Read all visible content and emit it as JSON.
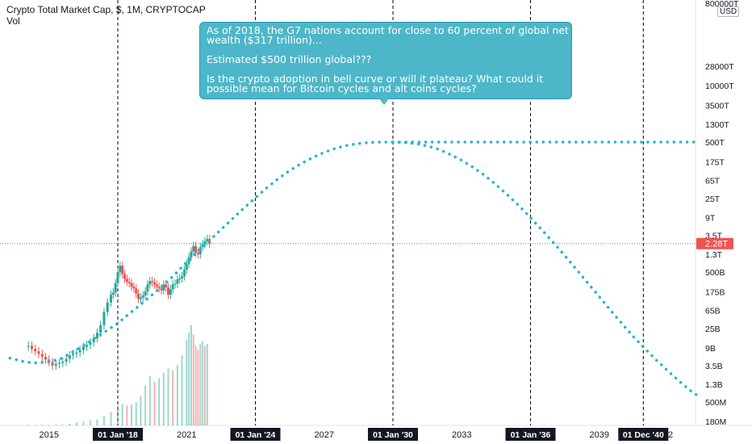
{
  "legend": {
    "title": "Crypto Total Market Cap, $, 1M, CRYPTOCAP",
    "volume_label": "Vol"
  },
  "currency_badge": "USD",
  "callout": {
    "lines": [
      "As of 2018, the G7 nations account for close to 60 percent of global net",
      "wealth ($317 trillion)...",
      "",
      "Estimated $500 trillion global???",
      "",
      "Is the crypto adoption in bell curve or will it plateau? What could it",
      "possible mean for Bitcoin cycles and alt coins cycles?"
    ]
  },
  "colors": {
    "up": "#26a69a",
    "down": "#ef5350",
    "projection": "#26b5cf",
    "price_line": "#ef5350",
    "callout_bg": "#4db6c9"
  },
  "chart_data": {
    "type": "line",
    "title": "Crypto Total Market Cap, $, 1M, CRYPTOCAP",
    "y_scale": "log",
    "y_tick_labels": [
      "800000T",
      "28000T",
      "10000T",
      "3500T",
      "1300T",
      "500T",
      "175T",
      "65T",
      "25T",
      "9T",
      "3.5T",
      "1.3T",
      "500B",
      "175B",
      "65B",
      "25B",
      "9B",
      "3.5B",
      "1.3B",
      "500M",
      "180M"
    ],
    "y_tick_values": [
      8e+17,
      2.8e+16,
      1e+16,
      3500000000000000.0,
      1300000000000000.0,
      500000000000000.0,
      175000000000000.0,
      65000000000000.0,
      25000000000000.0,
      9000000000000.0,
      3500000000000.0,
      1300000000000.0,
      500000000000.0,
      175000000000.0,
      65000000000.0,
      25000000000.0,
      9000000000.0,
      3500000000.0,
      1300000000.0,
      500000000.0,
      180000000.0
    ],
    "current_price_label": "2.28T",
    "current_price": 2280000000000.0,
    "x_tick_labels": [
      "2015",
      "2021",
      "2027",
      "2033",
      "2039",
      "42"
    ],
    "x_tick_years": [
      2015,
      2021,
      2027,
      2033,
      2039,
      2042
    ],
    "marker_labels": [
      "01 Jan '18",
      "01 Jan '24",
      "01 Jan '30",
      "01 Jan '36",
      "01 Dec '40"
    ],
    "marker_years": [
      2018.0,
      2024.0,
      2030.0,
      2036.0,
      2040.92
    ],
    "x_range": [
      2013.3,
      2043.5
    ],
    "series": [
      {
        "kind": "candles",
        "points": [
          [
            2014.1,
            10000000000.0
          ],
          [
            2014.25,
            8500000000.0
          ],
          [
            2014.4,
            7500000000.0
          ],
          [
            2014.55,
            6500000000.0
          ],
          [
            2014.7,
            5500000000.0
          ],
          [
            2014.85,
            4800000000.0
          ],
          [
            2015.0,
            4200000000.0
          ],
          [
            2015.15,
            3500000000.0
          ],
          [
            2015.3,
            3800000000.0
          ],
          [
            2015.45,
            4000000000.0
          ],
          [
            2015.6,
            4300000000.0
          ],
          [
            2015.75,
            5000000000.0
          ],
          [
            2015.9,
            6000000000.0
          ],
          [
            2016.05,
            6500000000.0
          ],
          [
            2016.2,
            7000000000.0
          ],
          [
            2016.35,
            8000000000.0
          ],
          [
            2016.5,
            9500000000.0
          ],
          [
            2016.65,
            10500000000.0
          ],
          [
            2016.8,
            12000000000.0
          ],
          [
            2016.95,
            15000000000.0
          ],
          [
            2017.1,
            20000000000.0
          ],
          [
            2017.25,
            30000000000.0
          ],
          [
            2017.4,
            60000000000.0
          ],
          [
            2017.55,
            100000000000.0
          ],
          [
            2017.7,
            150000000000.0
          ],
          [
            2017.8,
            170000000000.0
          ],
          [
            2017.9,
            280000000000.0
          ],
          [
            2018.0,
            500000000000.0
          ],
          [
            2018.1,
            700000000000.0
          ],
          [
            2018.2,
            450000000000.0
          ],
          [
            2018.3,
            350000000000.0
          ],
          [
            2018.4,
            300000000000.0
          ],
          [
            2018.5,
            280000000000.0
          ],
          [
            2018.6,
            230000000000.0
          ],
          [
            2018.7,
            210000000000.0
          ],
          [
            2018.8,
            160000000000.0
          ],
          [
            2018.9,
            120000000000.0
          ],
          [
            2019.0,
            130000000000.0
          ],
          [
            2019.1,
            145000000000.0
          ],
          [
            2019.2,
            180000000000.0
          ],
          [
            2019.3,
            260000000000.0
          ],
          [
            2019.4,
            310000000000.0
          ],
          [
            2019.5,
            290000000000.0
          ],
          [
            2019.6,
            260000000000.0
          ],
          [
            2019.7,
            230000000000.0
          ],
          [
            2019.8,
            210000000000.0
          ],
          [
            2019.9,
            190000000000.0
          ],
          [
            2020.0,
            260000000000.0
          ],
          [
            2020.1,
            220000000000.0
          ],
          [
            2020.2,
            150000000000.0
          ],
          [
            2020.3,
            200000000000.0
          ],
          [
            2020.4,
            260000000000.0
          ],
          [
            2020.5,
            270000000000.0
          ],
          [
            2020.6,
            340000000000.0
          ],
          [
            2020.7,
            360000000000.0
          ],
          [
            2020.8,
            400000000000.0
          ],
          [
            2020.9,
            570000000000.0
          ],
          [
            2021.0,
            780000000000.0
          ],
          [
            2021.1,
            1100000000000.0
          ],
          [
            2021.2,
            1500000000000.0
          ],
          [
            2021.3,
            2000000000000.0
          ],
          [
            2021.4,
            1400000000000.0
          ],
          [
            2021.5,
            1300000000000.0
          ],
          [
            2021.6,
            1900000000000.0
          ],
          [
            2021.7,
            2200000000000.0
          ],
          [
            2021.8,
            2600000000000.0
          ],
          [
            2021.9,
            2900000000000.0
          ],
          [
            2022.0,
            2280000000000.0
          ]
        ]
      },
      {
        "kind": "projection",
        "name": "",
        "points": [
          [
            2013.3,
            5200000000.0
          ],
          [
            2014.0,
            4200000000.0
          ],
          [
            2014.5,
            4000000000.0
          ],
          [
            2015.0,
            4300000000.0
          ],
          [
            2015.5,
            5000000000.0
          ],
          [
            2016.0,
            7000000000.0
          ],
          [
            2016.5,
            10000000000.0
          ],
          [
            2017.0,
            15000000000.0
          ],
          [
            2017.5,
            22000000000.0
          ],
          [
            2018.0,
            33000000000.0
          ],
          [
            2018.5,
            55000000000.0
          ],
          [
            2019.0,
            90000000000.0
          ],
          [
            2019.5,
            150000000000.0
          ],
          [
            2020.0,
            250000000000.0
          ],
          [
            2020.5,
            450000000000.0
          ],
          [
            2021.0,
            850000000000.0
          ],
          [
            2021.5,
            1500000000000.0
          ],
          [
            2022.0,
            2700000000000.0
          ],
          [
            2022.5,
            4800000000000.0
          ],
          [
            2023.0,
            8500000000000.0
          ],
          [
            2023.5,
            15000000000000.0
          ],
          [
            2024.0,
            26000000000000.0
          ],
          [
            2024.5,
            44000000000000.0
          ],
          [
            2025.0,
            72000000000000.0
          ],
          [
            2025.5,
            110000000000000.0
          ],
          [
            2026.0,
            160000000000000.0
          ],
          [
            2026.5,
            220000000000000.0
          ],
          [
            2027.0,
            290000000000000.0
          ],
          [
            2027.5,
            360000000000000.0
          ],
          [
            2028.0,
            420000000000000.0
          ],
          [
            2028.5,
            465000000000000.0
          ],
          [
            2029.0,
            490000000000000.0
          ],
          [
            2029.5,
            500000000000000.0
          ],
          [
            2030.0,
            500000000000000.0
          ],
          [
            2030.5,
            490000000000000.0
          ],
          [
            2031.0,
            460000000000000.0
          ],
          [
            2031.5,
            410000000000000.0
          ],
          [
            2032.0,
            340000000000000.0
          ],
          [
            2032.5,
            260000000000000.0
          ],
          [
            2033.0,
            190000000000000.0
          ],
          [
            2033.5,
            130000000000000.0
          ],
          [
            2034.0,
            85000000000000.0
          ],
          [
            2034.5,
            52000000000000.0
          ],
          [
            2035.0,
            30000000000000.0
          ],
          [
            2035.5,
            17000000000000.0
          ],
          [
            2036.0,
            9000000000000.0
          ],
          [
            2036.5,
            4700000000000.0
          ],
          [
            2037.0,
            2400000000000.0
          ],
          [
            2037.5,
            1200000000000.0
          ],
          [
            2038.0,
            580000000000.0
          ],
          [
            2038.5,
            280000000000.0
          ],
          [
            2039.0,
            135000000000.0
          ],
          [
            2039.5,
            65000000000.0
          ],
          [
            2040.0,
            32000000000.0
          ],
          [
            2040.5,
            16000000000.0
          ],
          [
            2041.0,
            8500000000.0
          ],
          [
            2041.5,
            4600000000.0
          ],
          [
            2042.0,
            2600000000.0
          ],
          [
            2042.5,
            1500000000.0
          ],
          [
            2043.0,
            900000000.0
          ],
          [
            2043.4,
            650000000.0
          ]
        ]
      },
      {
        "kind": "plateau",
        "name": "",
        "points": [
          [
            2030.0,
            500000000000000.0
          ],
          [
            2043.5,
            500000000000000.0
          ]
        ]
      },
      {
        "kind": "volume",
        "points": [
          [
            2014.1,
            150000000.0
          ],
          [
            2014.4,
            150000000.0
          ],
          [
            2014.7,
            150000000.0
          ],
          [
            2015.0,
            150000000.0
          ],
          [
            2015.3,
            150000000.0
          ],
          [
            2015.6,
            150000000.0
          ],
          [
            2015.9,
            160000000.0
          ],
          [
            2016.2,
            170000000.0
          ],
          [
            2016.5,
            180000000.0
          ],
          [
            2016.8,
            190000000.0
          ],
          [
            2017.1,
            200000000.0
          ],
          [
            2017.4,
            240000000.0
          ],
          [
            2017.7,
            300000000.0
          ],
          [
            2018.0,
            400000000.0
          ],
          [
            2018.2,
            450000000.0
          ],
          [
            2018.4,
            420000000.0
          ],
          [
            2018.6,
            450000000.0
          ],
          [
            2018.8,
            500000000.0
          ],
          [
            2019.0,
            700000000.0
          ],
          [
            2019.2,
            1200000000.0
          ],
          [
            2019.4,
            2000000000.0
          ],
          [
            2019.6,
            1500000000.0
          ],
          [
            2019.8,
            1800000000.0
          ],
          [
            2020.0,
            2400000000.0
          ],
          [
            2020.2,
            3000000000.0
          ],
          [
            2020.4,
            2700000000.0
          ],
          [
            2020.6,
            3600000000.0
          ],
          [
            2020.8,
            6000000000.0
          ],
          [
            2021.0,
            14000000000.0
          ],
          [
            2021.1,
            20000000000.0
          ],
          [
            2021.2,
            30000000000.0
          ],
          [
            2021.3,
            18000000000.0
          ],
          [
            2021.4,
            10000000000.0
          ],
          [
            2021.5,
            8000000000.0
          ],
          [
            2021.6,
            11000000000.0
          ],
          [
            2021.7,
            13000000000.0
          ],
          [
            2021.8,
            10000000000.0
          ],
          [
            2021.9,
            11000000000.0
          ]
        ]
      }
    ]
  }
}
